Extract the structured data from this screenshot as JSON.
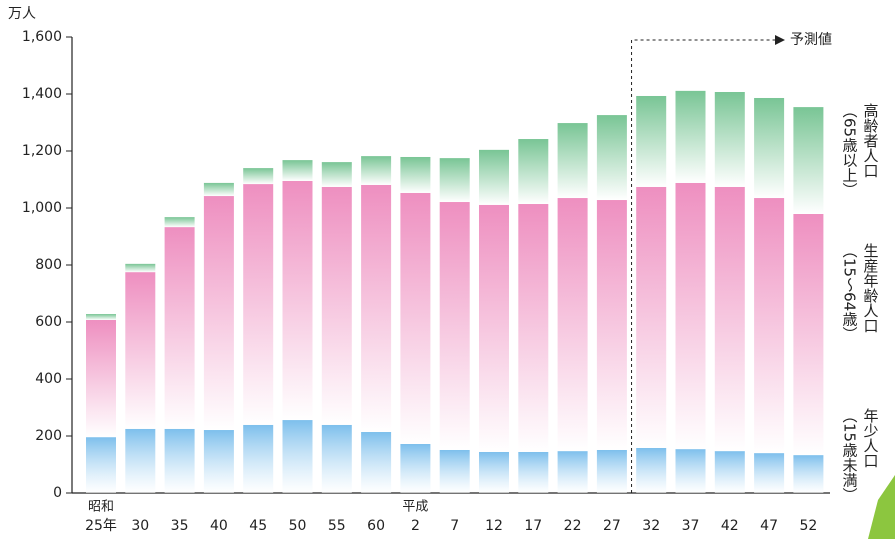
{
  "chart_data": {
    "type": "stacked_bar",
    "y_unit": "万人",
    "categories": [
      "25年",
      "30",
      "35",
      "40",
      "45",
      "50",
      "55",
      "60",
      "2",
      "7",
      "12",
      "17",
      "22",
      "27",
      "32",
      "37",
      "42",
      "47",
      "52"
    ],
    "era_labels": [
      "昭和",
      null,
      null,
      null,
      null,
      null,
      null,
      null,
      "平成",
      null,
      null,
      null,
      null,
      null,
      null,
      null,
      null,
      null,
      null
    ],
    "series": [
      {
        "name": "年少人口",
        "note": "（15歳未満）",
        "color": "#7dbfec",
        "values": [
          196,
          225,
          225,
          221,
          239,
          256,
          239,
          214,
          172,
          151,
          144,
          144,
          147,
          151,
          158,
          154,
          147,
          140,
          133
        ]
      },
      {
        "name": "生産年齢人口",
        "note": "（15～64歳）",
        "color": "#ee8fc0",
        "values": [
          411,
          550,
          708,
          821,
          845,
          839,
          835,
          867,
          881,
          870,
          867,
          870,
          888,
          877,
          916,
          934,
          927,
          895,
          846
        ]
      },
      {
        "name": "高齢者人口",
        "note": "（65歳以上）",
        "color": "#79c595",
        "values": [
          21,
          29,
          35,
          46,
          56,
          73,
          87,
          101,
          126,
          154,
          193,
          228,
          263,
          298,
          319,
          323,
          333,
          351,
          375
        ]
      }
    ],
    "forecast_label": "予測値",
    "ylim": [
      0,
      1600
    ],
    "yticks": [
      0,
      200,
      400,
      600,
      800,
      {
        "value": 1000,
        "label": "1,000"
      },
      {
        "value": 1200,
        "label": "1,200"
      },
      {
        "value": 1400,
        "label": "1,400"
      },
      {
        "value": 1600,
        "label": "1,600"
      }
    ]
  }
}
